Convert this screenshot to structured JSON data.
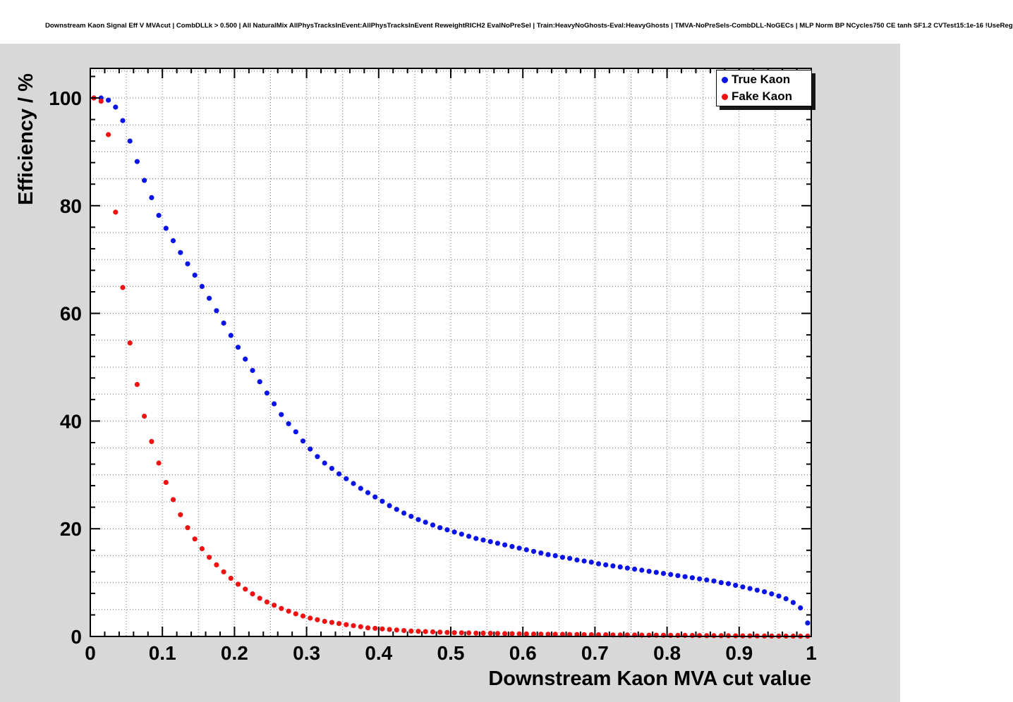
{
  "title": "Downstream Kaon Signal Eff V MVAcut | CombDLLk > 0.500 | All NaturalMix AllPhysTracksInEvent:AllPhysTracksInEvent ReweightRICH2 EvalNoPreSel | Train:HeavyNoGhosts-Eval:HeavyGhosts | TMVA-NoPreSels-CombDLL-NoGECs | MLP Norm BP NCycles750 CE tanh SF1.2 CVTest15:1e-16 !UseReg",
  "colors": {
    "true_kaon": "#0a14e6",
    "fake_kaon": "#ee1212",
    "pad_background": "#d8d8d8",
    "frame_background": "#ffffff"
  },
  "chart_data": {
    "type": "scatter",
    "title": "Downstream Kaon Signal Eff V MVAcut",
    "xlabel": "Downstream Kaon MVA cut value",
    "ylabel": "Efficiency / %",
    "xlim": [
      0,
      1
    ],
    "ylim": [
      0,
      105.5
    ],
    "grid": true,
    "legend_position": "top-right",
    "x_tick_values": [
      0,
      0.1,
      0.2,
      0.3,
      0.4,
      0.5,
      0.6,
      0.7,
      0.8,
      0.9,
      1
    ],
    "x_tick_labels": [
      "0",
      "0.1",
      "0.2",
      "0.3",
      "0.4",
      "0.5",
      "0.6",
      "0.7",
      "0.8",
      "0.9",
      "1"
    ],
    "y_tick_values": [
      0,
      20,
      40,
      60,
      80,
      100
    ],
    "y_tick_labels": [
      "0",
      "20",
      "40",
      "60",
      "80",
      "100"
    ],
    "x": [
      0.005,
      0.015,
      0.025,
      0.035,
      0.045,
      0.055,
      0.065,
      0.075,
      0.085,
      0.095,
      0.105,
      0.115,
      0.125,
      0.135,
      0.145,
      0.155,
      0.165,
      0.175,
      0.185,
      0.195,
      0.205,
      0.215,
      0.225,
      0.235,
      0.245,
      0.255,
      0.265,
      0.275,
      0.285,
      0.295,
      0.305,
      0.315,
      0.325,
      0.335,
      0.345,
      0.355,
      0.365,
      0.375,
      0.385,
      0.395,
      0.405,
      0.415,
      0.425,
      0.435,
      0.445,
      0.455,
      0.465,
      0.475,
      0.485,
      0.495,
      0.505,
      0.515,
      0.525,
      0.535,
      0.545,
      0.555,
      0.565,
      0.575,
      0.585,
      0.595,
      0.605,
      0.615,
      0.625,
      0.635,
      0.645,
      0.655,
      0.665,
      0.675,
      0.685,
      0.695,
      0.705,
      0.715,
      0.725,
      0.735,
      0.745,
      0.755,
      0.765,
      0.775,
      0.785,
      0.795,
      0.805,
      0.815,
      0.825,
      0.835,
      0.845,
      0.855,
      0.865,
      0.875,
      0.885,
      0.895,
      0.905,
      0.915,
      0.925,
      0.935,
      0.945,
      0.955,
      0.965,
      0.975,
      0.985,
      0.995
    ],
    "series": [
      {
        "name": "True Kaon",
        "color": "#0a14e6",
        "values": [
          100.0,
          100.0,
          99.6,
          98.3,
          95.8,
          92.0,
          88.2,
          84.7,
          81.5,
          78.2,
          75.8,
          73.5,
          71.3,
          69.2,
          67.1,
          65.0,
          62.8,
          60.5,
          58.2,
          55.9,
          53.7,
          51.5,
          49.4,
          47.3,
          45.2,
          43.2,
          41.2,
          39.5,
          38.0,
          36.3,
          34.8,
          33.4,
          32.2,
          31.2,
          30.2,
          29.3,
          28.4,
          27.5,
          26.7,
          25.9,
          25.1,
          24.3,
          23.6,
          22.9,
          22.3,
          21.7,
          21.2,
          20.7,
          20.2,
          19.8,
          19.4,
          19.0,
          18.6,
          18.2,
          17.9,
          17.6,
          17.3,
          17.0,
          16.7,
          16.4,
          16.1,
          15.8,
          15.5,
          15.2,
          15.0,
          14.7,
          14.5,
          14.2,
          14.0,
          13.8,
          13.5,
          13.3,
          13.1,
          12.9,
          12.7,
          12.5,
          12.3,
          12.1,
          11.9,
          11.7,
          11.5,
          11.3,
          11.1,
          10.9,
          10.7,
          10.5,
          10.3,
          10.0,
          9.8,
          9.5,
          9.2,
          8.9,
          8.6,
          8.3,
          7.9,
          7.5,
          7.0,
          6.3,
          5.3,
          2.5
        ]
      },
      {
        "name": "Fake Kaon",
        "color": "#ee1212",
        "values": [
          100.0,
          99.4,
          93.2,
          78.8,
          64.8,
          54.5,
          46.8,
          40.9,
          36.2,
          32.2,
          28.6,
          25.4,
          22.6,
          20.2,
          18.1,
          16.3,
          14.7,
          13.3,
          12.0,
          10.8,
          9.7,
          8.8,
          7.9,
          7.1,
          6.4,
          5.8,
          5.2,
          4.7,
          4.2,
          3.8,
          3.4,
          3.1,
          2.8,
          2.6,
          2.4,
          2.2,
          2.0,
          1.8,
          1.6,
          1.5,
          1.4,
          1.3,
          1.2,
          1.1,
          1.0,
          0.95,
          0.9,
          0.85,
          0.8,
          0.75,
          0.7,
          0.68,
          0.65,
          0.62,
          0.6,
          0.58,
          0.55,
          0.53,
          0.51,
          0.49,
          0.47,
          0.45,
          0.43,
          0.42,
          0.4,
          0.39,
          0.37,
          0.36,
          0.34,
          0.33,
          0.32,
          0.31,
          0.29,
          0.28,
          0.27,
          0.26,
          0.25,
          0.24,
          0.23,
          0.22,
          0.21,
          0.2,
          0.19,
          0.18,
          0.17,
          0.16,
          0.15,
          0.14,
          0.13,
          0.12,
          0.11,
          0.1,
          0.09,
          0.08,
          0.08,
          0.07,
          0.06,
          0.06,
          0.05,
          0.05
        ]
      }
    ]
  }
}
